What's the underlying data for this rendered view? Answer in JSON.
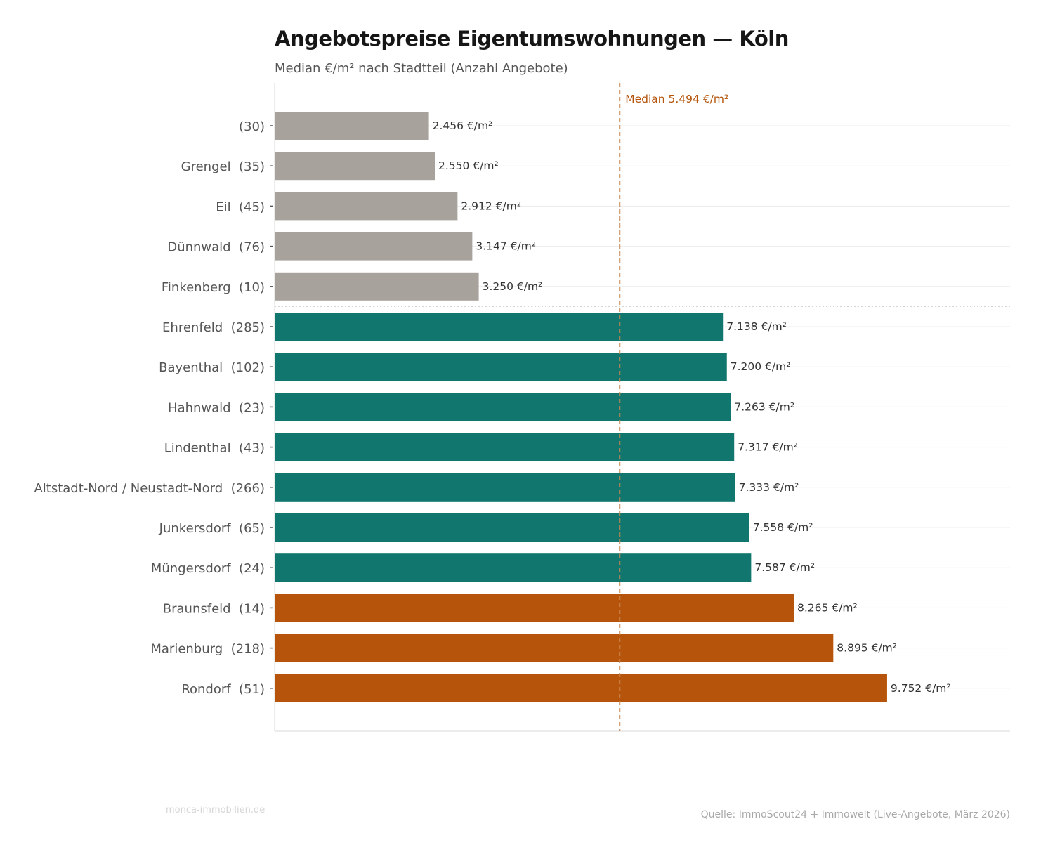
{
  "chart_data": {
    "type": "bar",
    "orientation": "horizontal",
    "title": "Angebotspreise Eigentumswohnungen — Köln",
    "subtitle": "Median €/m² nach Stadtteil (Anzahl Angebote)",
    "categories": [
      "(30)",
      "Grengel  (35)",
      "Eil  (45)",
      "Dünnwald  (76)",
      "Finkenberg  (10)",
      "Ehrenfeld  (285)",
      "Bayenthal  (102)",
      "Hahnwald  (23)",
      "Lindenthal  (43)",
      "Altstadt-Nord / Neustadt-Nord  (266)",
      "Junkersdorf  (65)",
      "Müngersdorf  (24)",
      "Braunsfeld  (14)",
      "Marienburg  (218)",
      "Rondorf  (51)"
    ],
    "values": [
      2456,
      2550,
      2912,
      3147,
      3250,
      7138,
      7200,
      7263,
      7317,
      7333,
      7558,
      7587,
      8265,
      8895,
      9752
    ],
    "value_labels": [
      "2.456 €/m²",
      "2.550 €/m²",
      "2.912 €/m²",
      "3.147 €/m²",
      "3.250 €/m²",
      "7.138 €/m²",
      "7.200 €/m²",
      "7.263 €/m²",
      "7.317 €/m²",
      "7.333 €/m²",
      "7.558 €/m²",
      "7.587 €/m²",
      "8.265 €/m²",
      "8.895 €/m²",
      "9.752 €/m²"
    ],
    "groups": [
      "low",
      "low",
      "low",
      "low",
      "low",
      "mid",
      "mid",
      "mid",
      "mid",
      "mid",
      "mid",
      "mid",
      "high",
      "high",
      "high"
    ],
    "colors": {
      "low": "#a8a29c",
      "mid": "#10766e",
      "high": "#b5540a",
      "median": "#c8874f"
    },
    "median": {
      "value": 5494,
      "label": "Median 5.494 €/m²"
    },
    "xlim": [
      0,
      11710
    ],
    "grid": "horizontal",
    "xaxis_ticks": false
  },
  "footer": {
    "brand": "monca-immobilien.de",
    "source": "Quelle: ImmoScout24 + Immowelt (Live-Angebote, März 2026)"
  }
}
